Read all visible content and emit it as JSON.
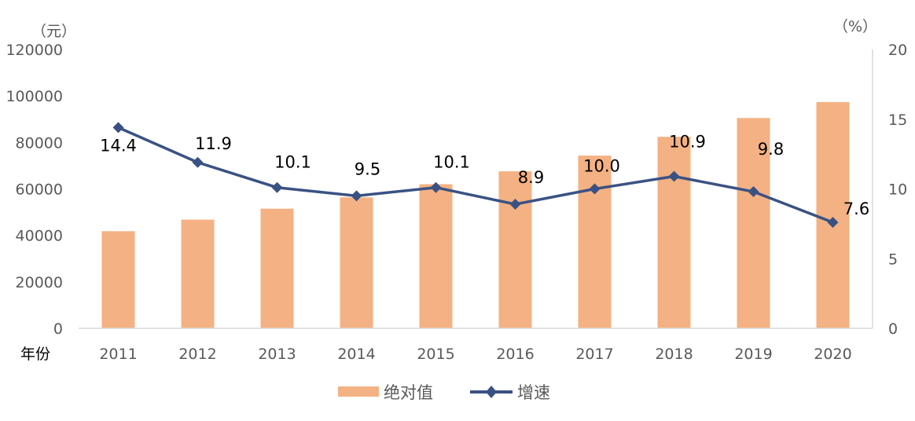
{
  "chart_data": {
    "type": "bar+line",
    "categories": [
      "2011",
      "2012",
      "2013",
      "2014",
      "2015",
      "2016",
      "2017",
      "2018",
      "2019",
      "2020"
    ],
    "xlabel": "年份",
    "y_left": {
      "unit_label": "（元）",
      "ylim": [
        0,
        120000
      ],
      "ticks": [
        0,
        20000,
        40000,
        60000,
        80000,
        100000,
        120000
      ]
    },
    "y_right": {
      "unit_label": "（%）",
      "ylim": [
        0,
        20
      ],
      "ticks": [
        0,
        5,
        10,
        15,
        20
      ]
    },
    "series": [
      {
        "name": "绝对值",
        "type": "bar",
        "axis": "left",
        "color": "#F4B183",
        "values": [
          41799,
          46769,
          51483,
          56360,
          62029,
          67569,
          74318,
          82413,
          90501,
          97379
        ]
      },
      {
        "name": "增速",
        "type": "line",
        "axis": "right",
        "color": "#3A5283",
        "marker": "diamond",
        "values": [
          14.4,
          11.9,
          10.1,
          9.5,
          10.1,
          8.9,
          10.0,
          10.9,
          9.8,
          7.6
        ],
        "data_labels": [
          "14.4",
          "11.9",
          "10.1",
          "9.5",
          "10.1",
          "8.9",
          "10.0",
          "10.9",
          "9.8",
          "7.6"
        ]
      }
    ],
    "grid": false,
    "legend_position": "bottom"
  }
}
